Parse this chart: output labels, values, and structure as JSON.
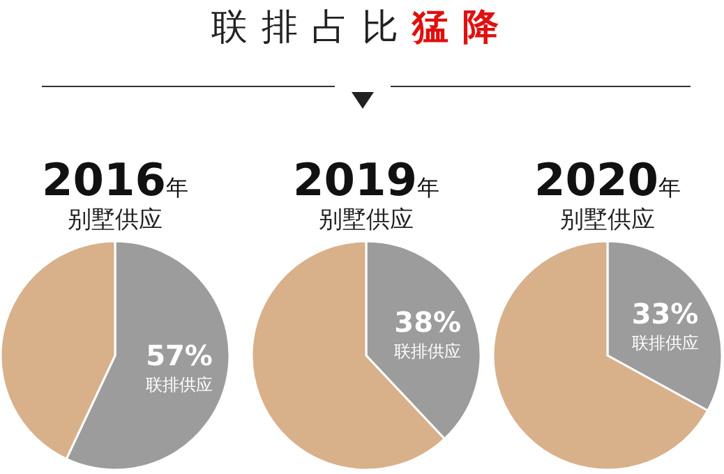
{
  "chart_data": [
    {
      "type": "pie",
      "title": "2016年",
      "subtitle": "别墅供应",
      "annotations": [
        "联排占比**猛降**"
      ],
      "categories": [
        "联排供应",
        null
      ],
      "values": [
        57,
        43
      ],
      "colors": [
        "#9c9c9c",
        "#d8b08a"
      ],
      "value_labels": [
        "57%",
        null
      ]
    },
    {
      "type": "pie",
      "title": "2019年",
      "subtitle": "别墅供应",
      "categories": [
        "联排供应",
        null
      ],
      "values": [
        38,
        62
      ],
      "colors": [
        "#9c9c9c",
        "#d8b08a"
      ],
      "value_labels": [
        "38%",
        null
      ]
    },
    {
      "type": "pie",
      "title": "2020年",
      "subtitle": "别墅供应",
      "categories": [
        "联排供应",
        null
      ],
      "values": [
        33,
        67
      ],
      "colors": [
        "#9c9c9c",
        "#d8b08a"
      ],
      "value_labels": [
        "33%",
        null
      ]
    }
  ]
}
